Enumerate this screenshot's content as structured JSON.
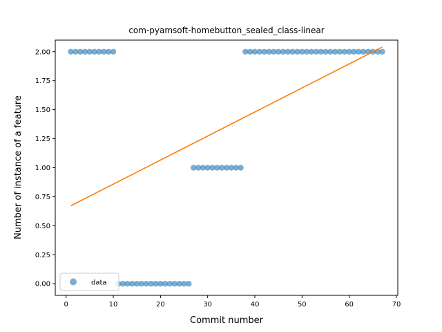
{
  "chart_data": {
    "type": "scatter",
    "title": "com-pyamsoft-homebutton_sealed_class-linear",
    "xlabel": "Commit number",
    "ylabel": "Number of instance of a feature",
    "xlim": [
      -2.3,
      70.3
    ],
    "ylim": [
      -0.1,
      2.1
    ],
    "x_ticks": [
      0,
      10,
      20,
      30,
      40,
      50,
      60,
      70
    ],
    "x_tick_labels": [
      "0",
      "10",
      "20",
      "30",
      "40",
      "50",
      "60",
      "70"
    ],
    "y_ticks": [
      0,
      0.25,
      0.5,
      0.75,
      1.0,
      1.25,
      1.5,
      1.75,
      2.0
    ],
    "y_tick_labels": [
      "0.00",
      "0.25",
      "0.50",
      "0.75",
      "1.00",
      "1.25",
      "1.50",
      "1.75",
      "2.00"
    ],
    "grid": false,
    "legend_position": "lower-left",
    "series": [
      {
        "name": "data",
        "kind": "scatter",
        "color": "#1f77b4",
        "x": [
          1,
          2,
          3,
          4,
          5,
          6,
          7,
          8,
          9,
          10,
          11,
          12,
          13,
          14,
          15,
          16,
          17,
          18,
          19,
          20,
          21,
          22,
          23,
          24,
          25,
          26,
          27,
          28,
          29,
          30,
          31,
          32,
          33,
          34,
          35,
          36,
          37,
          38,
          39,
          40,
          41,
          42,
          43,
          44,
          45,
          46,
          47,
          48,
          49,
          50,
          51,
          52,
          53,
          54,
          55,
          56,
          57,
          58,
          59,
          60,
          61,
          62,
          63,
          64,
          65,
          66,
          67
        ],
        "y": [
          2,
          2,
          2,
          2,
          2,
          2,
          2,
          2,
          2,
          2,
          0,
          0,
          0,
          0,
          0,
          0,
          0,
          0,
          0,
          0,
          0,
          0,
          0,
          0,
          0,
          0,
          1,
          1,
          1,
          1,
          1,
          1,
          1,
          1,
          1,
          1,
          1,
          2,
          2,
          2,
          2,
          2,
          2,
          2,
          2,
          2,
          2,
          2,
          2,
          2,
          2,
          2,
          2,
          2,
          2,
          2,
          2,
          2,
          2,
          2,
          2,
          2,
          2,
          2,
          2,
          2,
          2
        ]
      },
      {
        "kind": "line",
        "color": "#ff7f0e",
        "x": [
          1,
          67
        ],
        "y": [
          0.672,
          2.04
        ]
      }
    ]
  }
}
